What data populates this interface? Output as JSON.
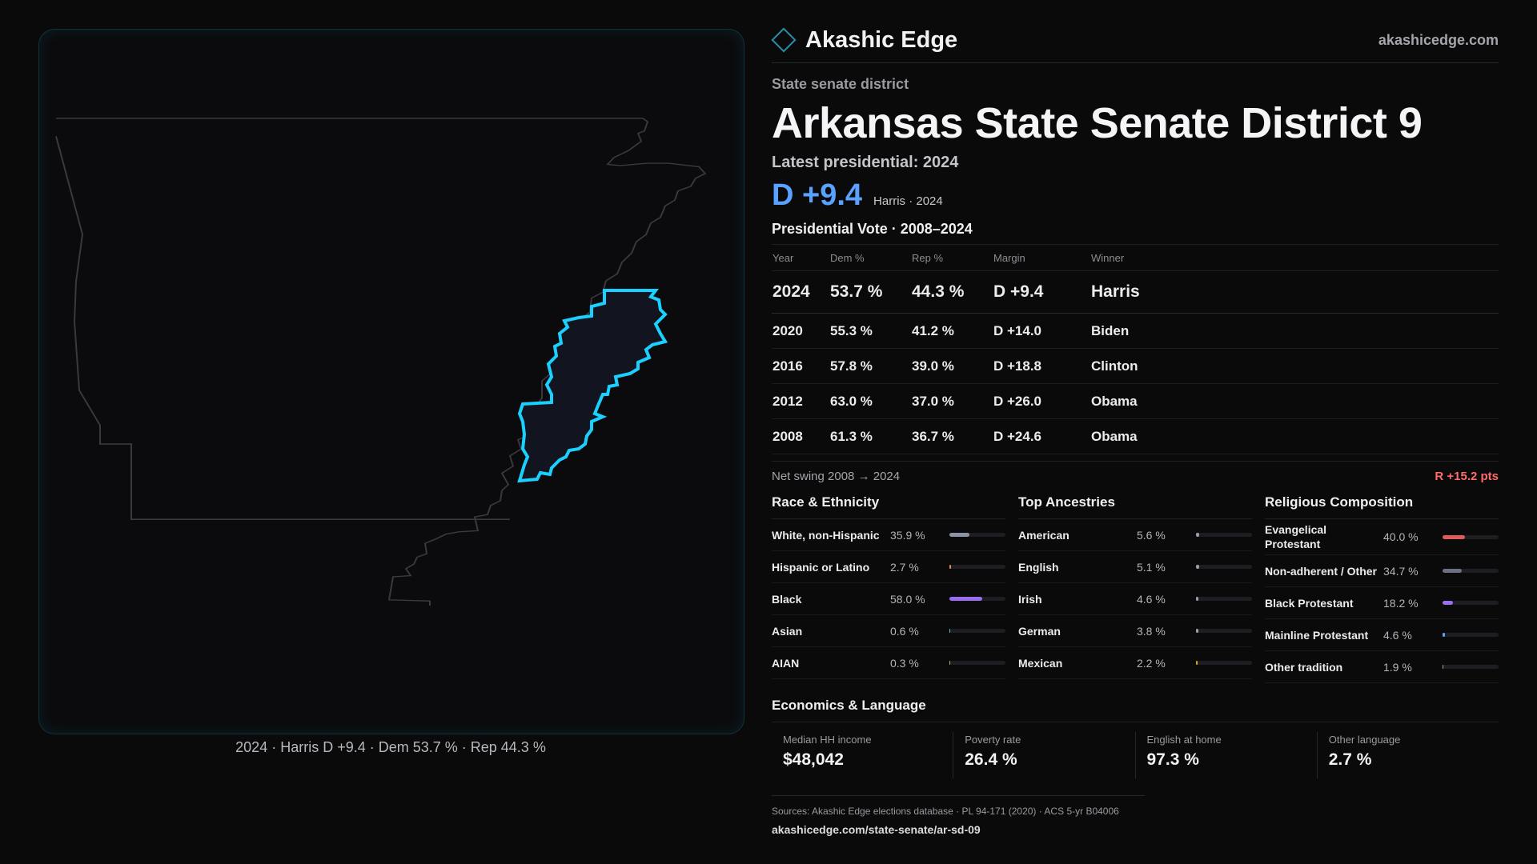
{
  "brand": {
    "name": "Akashic Edge",
    "url": "akashicedge.com"
  },
  "page": {
    "eyebrow": "State senate district",
    "title": "Arkansas State Senate District 9",
    "latest_label": "Latest presidential: 2024",
    "margin": "D +9.4",
    "margin_sub": "Harris · 2024"
  },
  "map": {
    "caption": "2024 · Harris D +9.4 · Dem 53.7 % · Rep 44.3 %",
    "state_outline_color": "#3a3a3e",
    "district_color": "#1ad0ff"
  },
  "presidential": {
    "title": "Presidential Vote · 2008–2024",
    "headers": [
      "Year",
      "Dem %",
      "Rep %",
      "Margin",
      "Winner"
    ],
    "rows": [
      {
        "year": "2024",
        "dem": "53.7 %",
        "rep": "44.3 %",
        "margin": "D +9.4",
        "winner": "Harris"
      },
      {
        "year": "2020",
        "dem": "55.3 %",
        "rep": "41.2 %",
        "margin": "D +14.0",
        "winner": "Biden"
      },
      {
        "year": "2016",
        "dem": "57.8 %",
        "rep": "39.0 %",
        "margin": "D +18.8",
        "winner": "Clinton"
      },
      {
        "year": "2012",
        "dem": "63.0 %",
        "rep": "37.0 %",
        "margin": "D +26.0",
        "winner": "Obama"
      },
      {
        "year": "2008",
        "dem": "61.3 %",
        "rep": "36.7 %",
        "margin": "D +24.6",
        "winner": "Obama"
      }
    ],
    "swing_label": "Net swing 2008 → 2024",
    "swing_value": "R +15.2 pts"
  },
  "race": {
    "title": "Race & Ethnicity",
    "items": [
      {
        "label": "White, non-Hispanic",
        "value": "35.9 %",
        "pct": 35.9,
        "color": "#8a94a6"
      },
      {
        "label": "Hispanic or Latino",
        "value": "2.7 %",
        "pct": 2.7,
        "color": "#f08a3c"
      },
      {
        "label": "Black",
        "value": "58.0 %",
        "pct": 58.0,
        "color": "#9b6df0"
      },
      {
        "label": "Asian",
        "value": "0.6 %",
        "pct": 0.6,
        "color": "#4fc3c9"
      },
      {
        "label": "AIAN",
        "value": "0.3 %",
        "pct": 0.3,
        "color": "#c9a64f"
      }
    ]
  },
  "ancestry": {
    "title": "Top Ancestries",
    "items": [
      {
        "label": "American",
        "value": "5.6 %",
        "pct": 5.6,
        "color": "#9aa0ab"
      },
      {
        "label": "English",
        "value": "5.1 %",
        "pct": 5.1,
        "color": "#9aa0ab"
      },
      {
        "label": "Irish",
        "value": "4.6 %",
        "pct": 4.6,
        "color": "#9aa0ab"
      },
      {
        "label": "German",
        "value": "3.8 %",
        "pct": 3.8,
        "color": "#9aa0ab"
      },
      {
        "label": "Mexican",
        "value": "2.2 %",
        "pct": 2.2,
        "color": "#e0a030"
      }
    ]
  },
  "religion": {
    "title": "Religious Composition",
    "items": [
      {
        "label": "Evangelical Protestant",
        "value": "40.0 %",
        "pct": 40.0,
        "color": "#e05a5a"
      },
      {
        "label": "Non-adherent / Other",
        "value": "34.7 %",
        "pct": 34.7,
        "color": "#6a7180"
      },
      {
        "label": "Black Protestant",
        "value": "18.2 %",
        "pct": 18.2,
        "color": "#9b6df0"
      },
      {
        "label": "Mainline Protestant",
        "value": "4.6 %",
        "pct": 4.6,
        "color": "#5aa2ff"
      },
      {
        "label": "Other tradition",
        "value": "1.9 %",
        "pct": 1.9,
        "color": "#9aa0ab"
      }
    ]
  },
  "economics": {
    "title": "Economics & Language",
    "cells": [
      {
        "label": "Median HH income",
        "value": "$48,042"
      },
      {
        "label": "Poverty rate",
        "value": "26.4 %"
      },
      {
        "label": "English at home",
        "value": "97.3 %"
      },
      {
        "label": "Other language",
        "value": "2.7 %"
      }
    ]
  },
  "sources": {
    "line": "Sources: Akashic Edge elections database · PL 94-171 (2020) · ACS 5-yr B04006",
    "url": "akashicedge.com/state-senate/ar-sd-09"
  }
}
